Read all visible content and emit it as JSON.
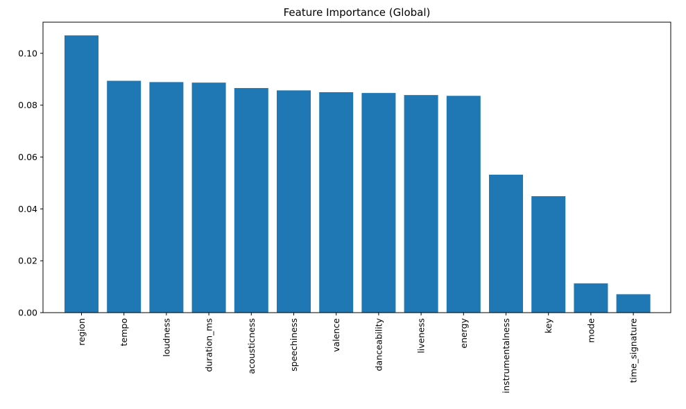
{
  "chart_data": {
    "type": "bar",
    "title": "Feature Importance (Global)",
    "xlabel": "",
    "ylabel": "",
    "categories": [
      "region",
      "tempo",
      "loudness",
      "duration_ms",
      "acousticness",
      "speechiness",
      "valence",
      "danceability",
      "liveness",
      "energy",
      "instrumentalness",
      "key",
      "mode",
      "time_signature"
    ],
    "values": [
      0.1069,
      0.0894,
      0.0889,
      0.0887,
      0.0866,
      0.0857,
      0.085,
      0.0847,
      0.0839,
      0.0836,
      0.0532,
      0.0449,
      0.0113,
      0.0071
    ],
    "yticks": [
      "0.00",
      "0.02",
      "0.04",
      "0.06",
      "0.08",
      "0.10"
    ],
    "ylim": [
      0,
      0.112
    ],
    "grid": false,
    "bar_color": "#1f77b4"
  }
}
